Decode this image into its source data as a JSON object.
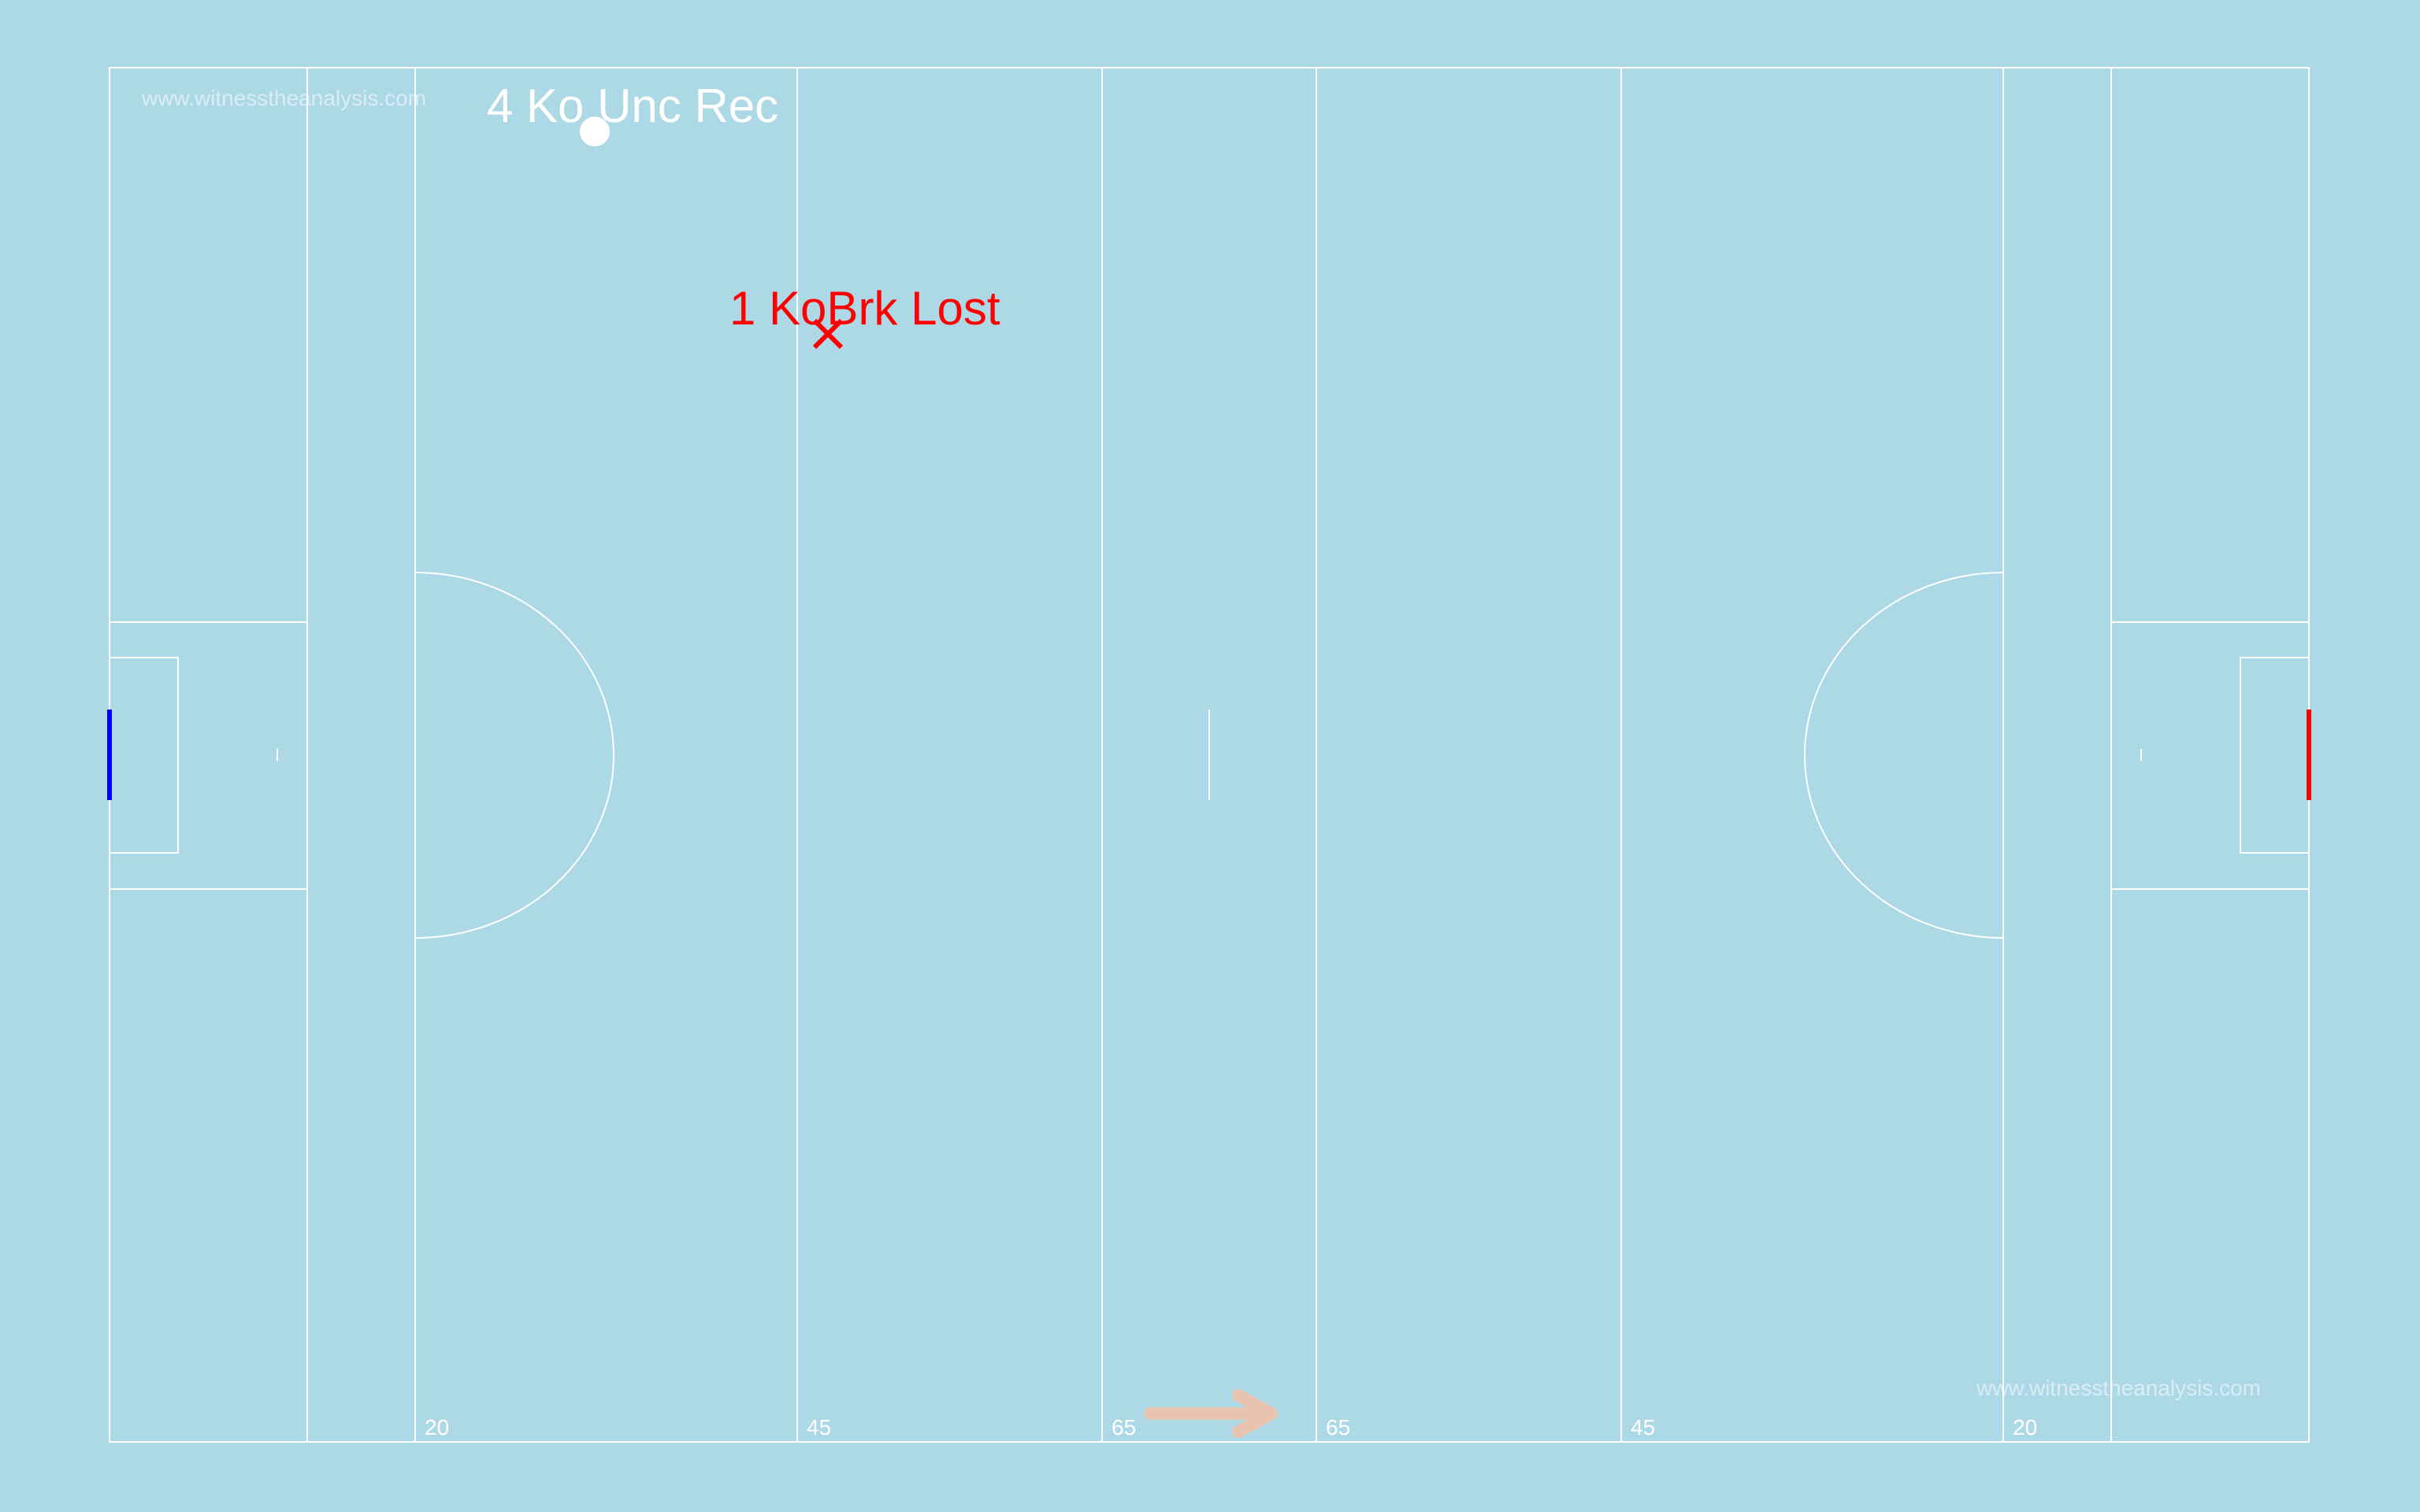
{
  "colors": {
    "background": "#add8e6",
    "pitch": "#a3ce61",
    "lines": "#ffffff",
    "left_goal": "#0000ff",
    "right_goal": "#ff0000",
    "direction_arrow": "#e8c4b0",
    "event_won": "#ffffff",
    "event_lost": "#ff0000"
  },
  "watermarks": {
    "top_left": "www.witnesstheanalysis.com",
    "bottom_right": "www.witnesstheanalysis.com"
  },
  "yard_labels": {
    "left_20": "20",
    "left_45": "45",
    "left_65": "65",
    "right_65": "65",
    "right_45": "45",
    "right_20": "20"
  },
  "events": {
    "kickout_won": {
      "label": "4 Ko Unc Rec",
      "marker": "white-circle"
    },
    "kickout_lost": {
      "label": "1 KoBrk Lost",
      "marker": "red-cross"
    }
  },
  "direction_arrow": {
    "icon": "arrow-right-icon"
  }
}
